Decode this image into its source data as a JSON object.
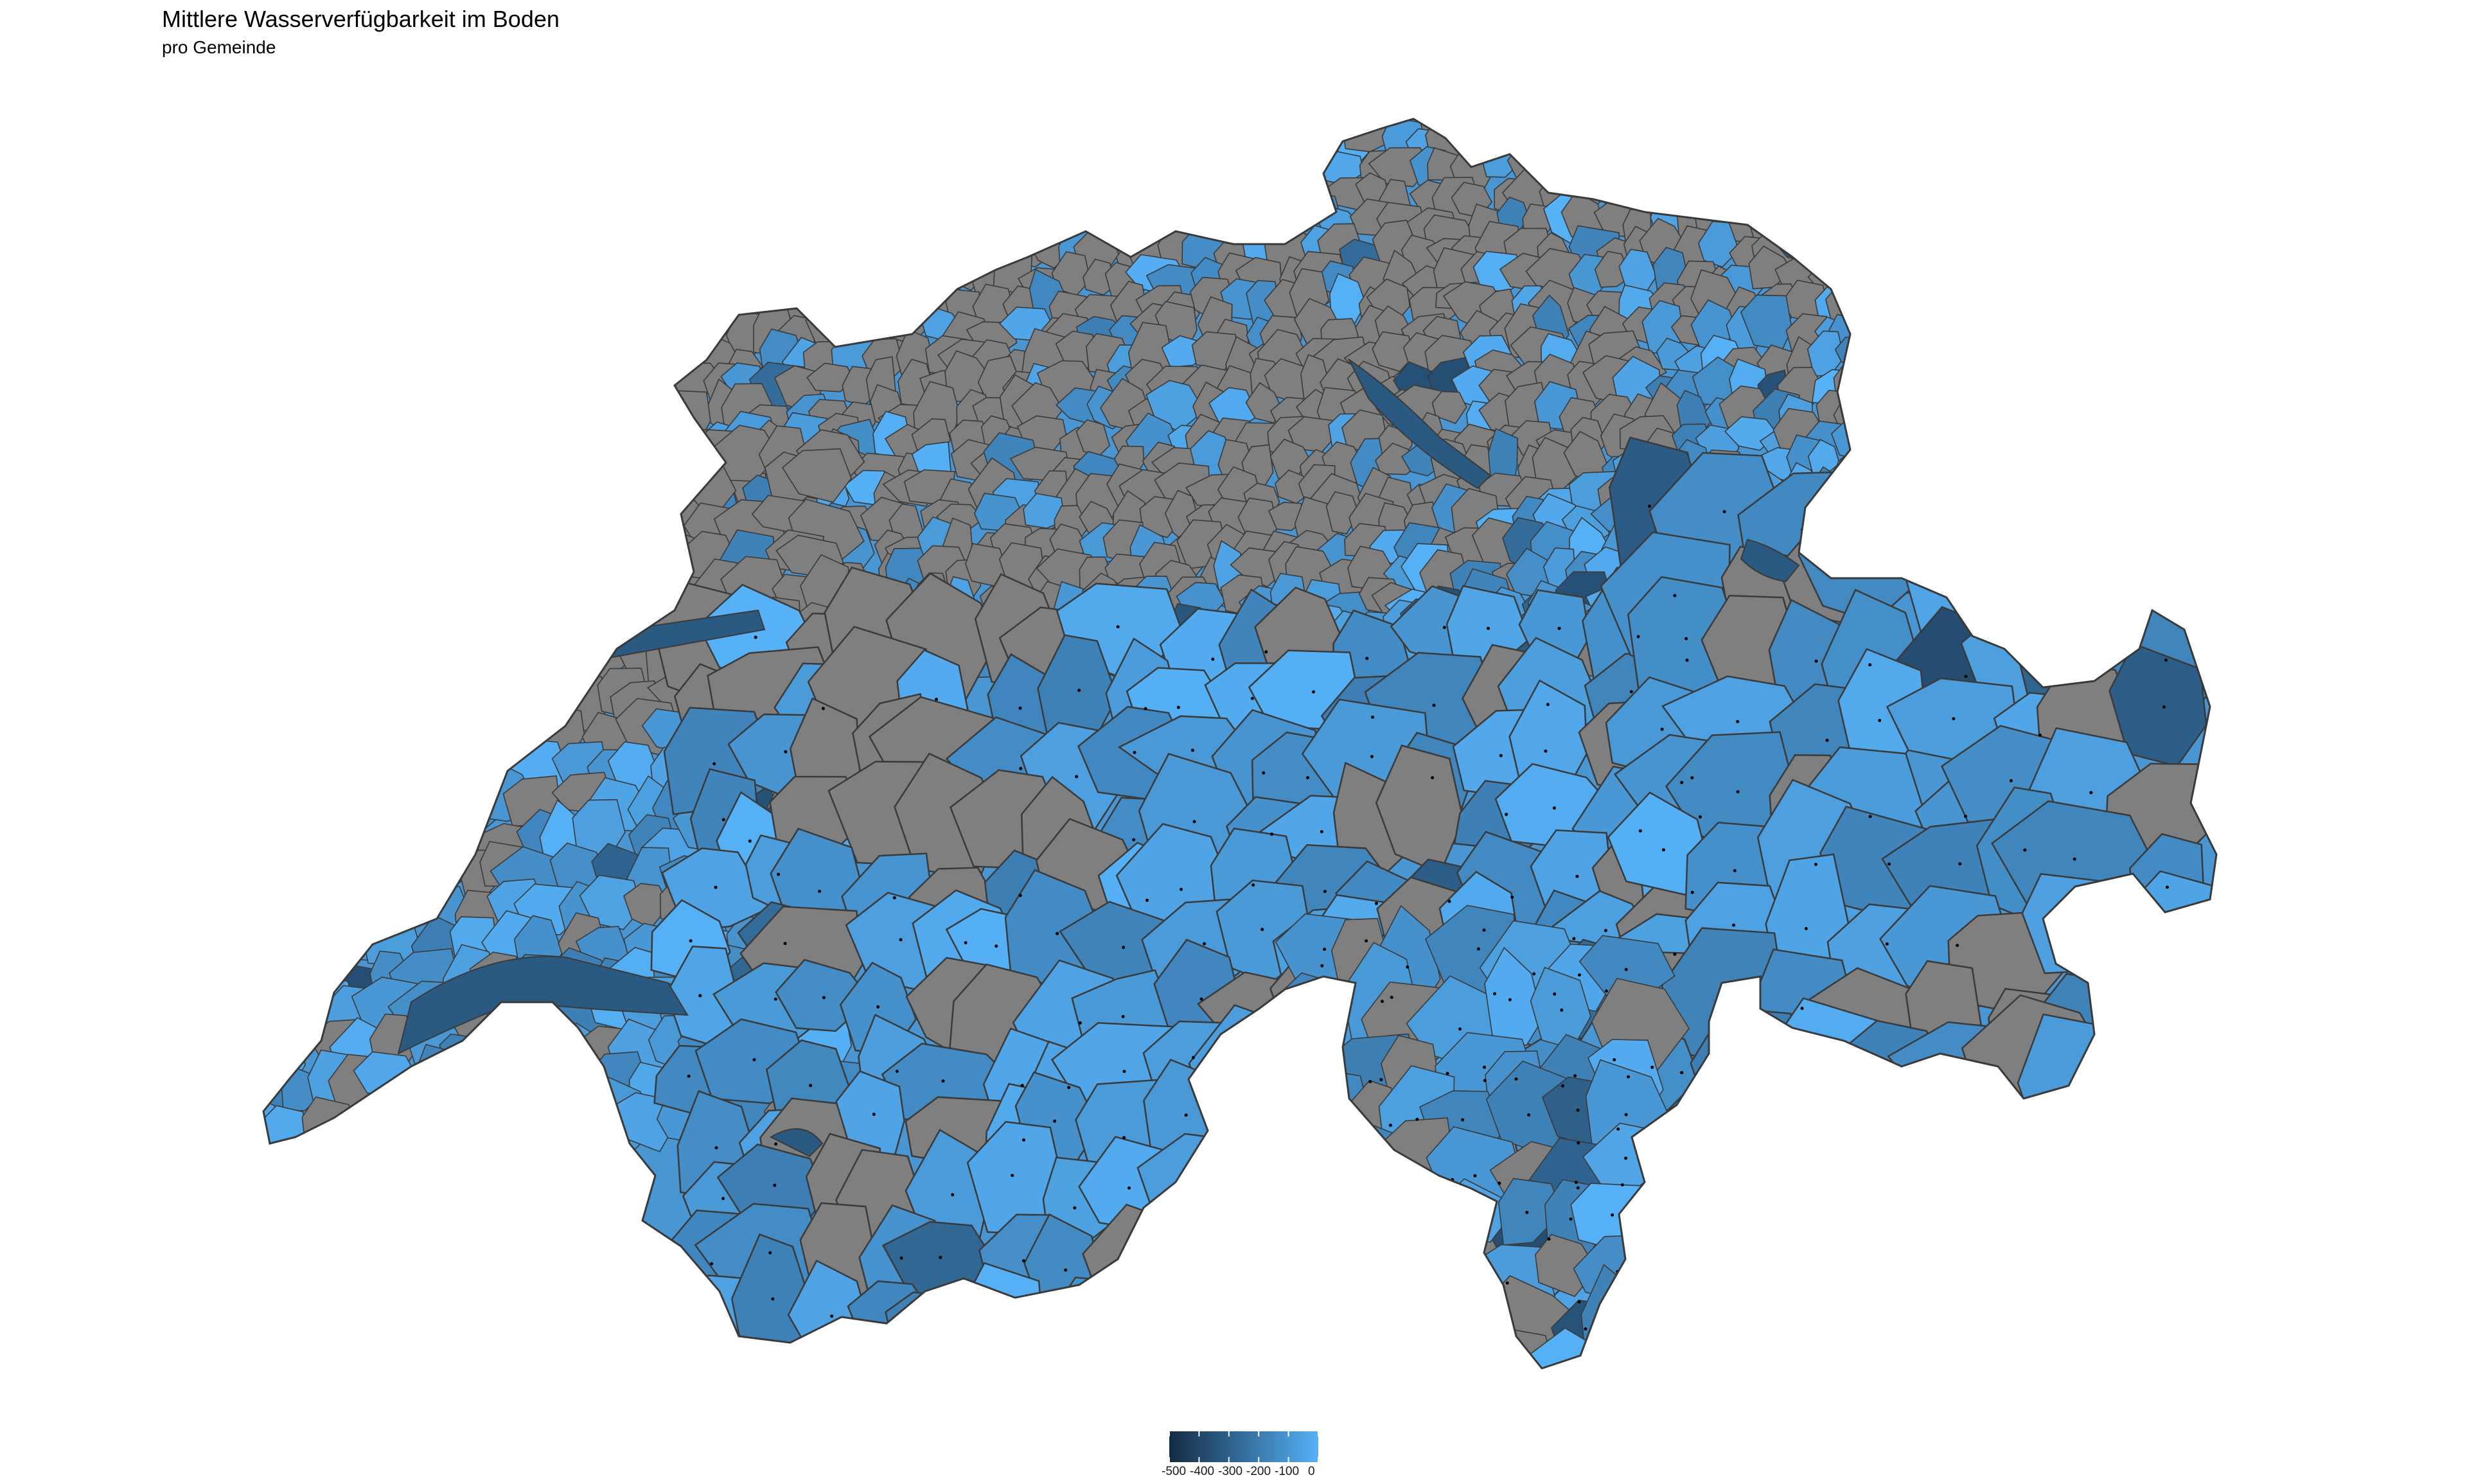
{
  "title": "Mittlere Wasserverfügbarkeit im Boden",
  "subtitle": "pro Gemeinde",
  "colors": {
    "na_fill": "#7f7f7f",
    "border": "#3a3a3a",
    "scale_low": "#132B43",
    "scale_high": "#56B1F7",
    "background": "#ffffff"
  },
  "legend": {
    "type": "continuous-colorbar",
    "placement": "bottom-center",
    "min": -500,
    "max": 0,
    "ticks": [
      -500,
      -400,
      -300,
      -200,
      -100,
      0
    ],
    "tick_labels": [
      "-500",
      "-400",
      "-300",
      "-200",
      "-100",
      "0"
    ]
  },
  "map": {
    "region": "Schweiz",
    "unit_level": "Gemeinde",
    "fill_variable": "Mittlere Wasserverfügbarkeit im Boden",
    "missing_value_style": "grey"
  }
}
